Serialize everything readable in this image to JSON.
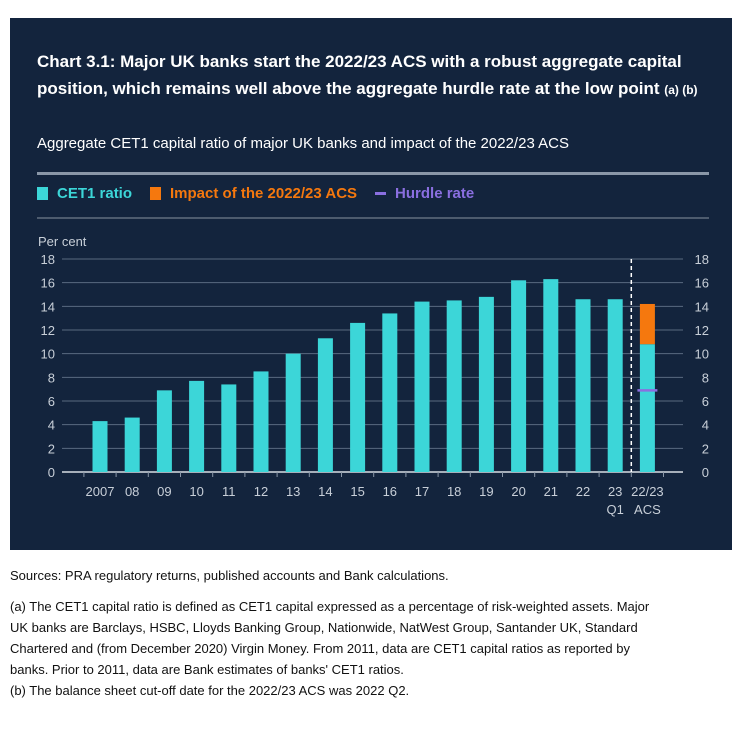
{
  "header": {
    "title": "Chart 3.1: Major UK banks start the 2022/23 ACS with a robust aggregate capital position, which remains well above the aggregate hurdle rate at the low point",
    "title_notes": "(a) (b)",
    "subtitle": "Aggregate CET1 capital ratio of major UK banks and impact of the 2022/23 ACS"
  },
  "colors": {
    "background": "#13243d",
    "cet1": "#3cd6d8",
    "impact": "#f5780e",
    "hurdle": "#8a6fe0",
    "grid": "#5a6a80",
    "text": "#c8cfd8"
  },
  "chart_data": {
    "type": "bar",
    "ylabel": "Per cent",
    "ylim": [
      0,
      18
    ],
    "yticks": [
      "0",
      "2",
      "4",
      "6",
      "8",
      "10",
      "12",
      "14",
      "16",
      "18"
    ],
    "grid": true,
    "legend_position": "top-left",
    "legend": [
      "CET1 ratio",
      "Impact of the 2022/23 ACS",
      "Hurdle rate"
    ],
    "categories": [
      "2007",
      "08",
      "09",
      "10",
      "11",
      "12",
      "13",
      "14",
      "15",
      "16",
      "17",
      "18",
      "19",
      "20",
      "21",
      "22",
      "23",
      "22/23"
    ],
    "category_sublabels": [
      "",
      "",
      "",
      "",
      "",
      "",
      "",
      "",
      "",
      "",
      "",
      "",
      "",
      "",
      "",
      "",
      "Q1",
      "ACS"
    ],
    "series": [
      {
        "name": "CET1 ratio",
        "values": [
          4.3,
          4.6,
          6.9,
          7.7,
          7.4,
          8.5,
          10.0,
          11.3,
          12.6,
          13.4,
          14.4,
          14.5,
          14.8,
          16.2,
          16.3,
          14.6,
          14.6,
          10.8
        ]
      },
      {
        "name": "Impact of the 2022/23 ACS",
        "values": [
          null,
          null,
          null,
          null,
          null,
          null,
          null,
          null,
          null,
          null,
          null,
          null,
          null,
          null,
          null,
          null,
          null,
          3.4
        ]
      },
      {
        "name": "Hurdle rate",
        "values": [
          null,
          null,
          null,
          null,
          null,
          null,
          null,
          null,
          null,
          null,
          null,
          null,
          null,
          null,
          null,
          null,
          null,
          6.9
        ]
      }
    ]
  },
  "notes": {
    "sources": "Sources: PRA regulatory returns, published accounts and Bank calculations.",
    "lines": [
      "(a) The CET1 capital ratio is defined as CET1 capital expressed as a percentage of risk-weighted assets. Major",
      "UK banks are Barclays, HSBC, Lloyds Banking Group, Nationwide, NatWest Group, Santander UK, Standard",
      "Chartered and (from December 2020) Virgin Money. From 2011, data are CET1 capital ratios as reported by",
      "banks. Prior to 2011, data are Bank estimates of banks' CET1 ratios.",
      "(b) The balance sheet cut-off date for the 2022/23 ACS was 2022 Q2."
    ]
  }
}
